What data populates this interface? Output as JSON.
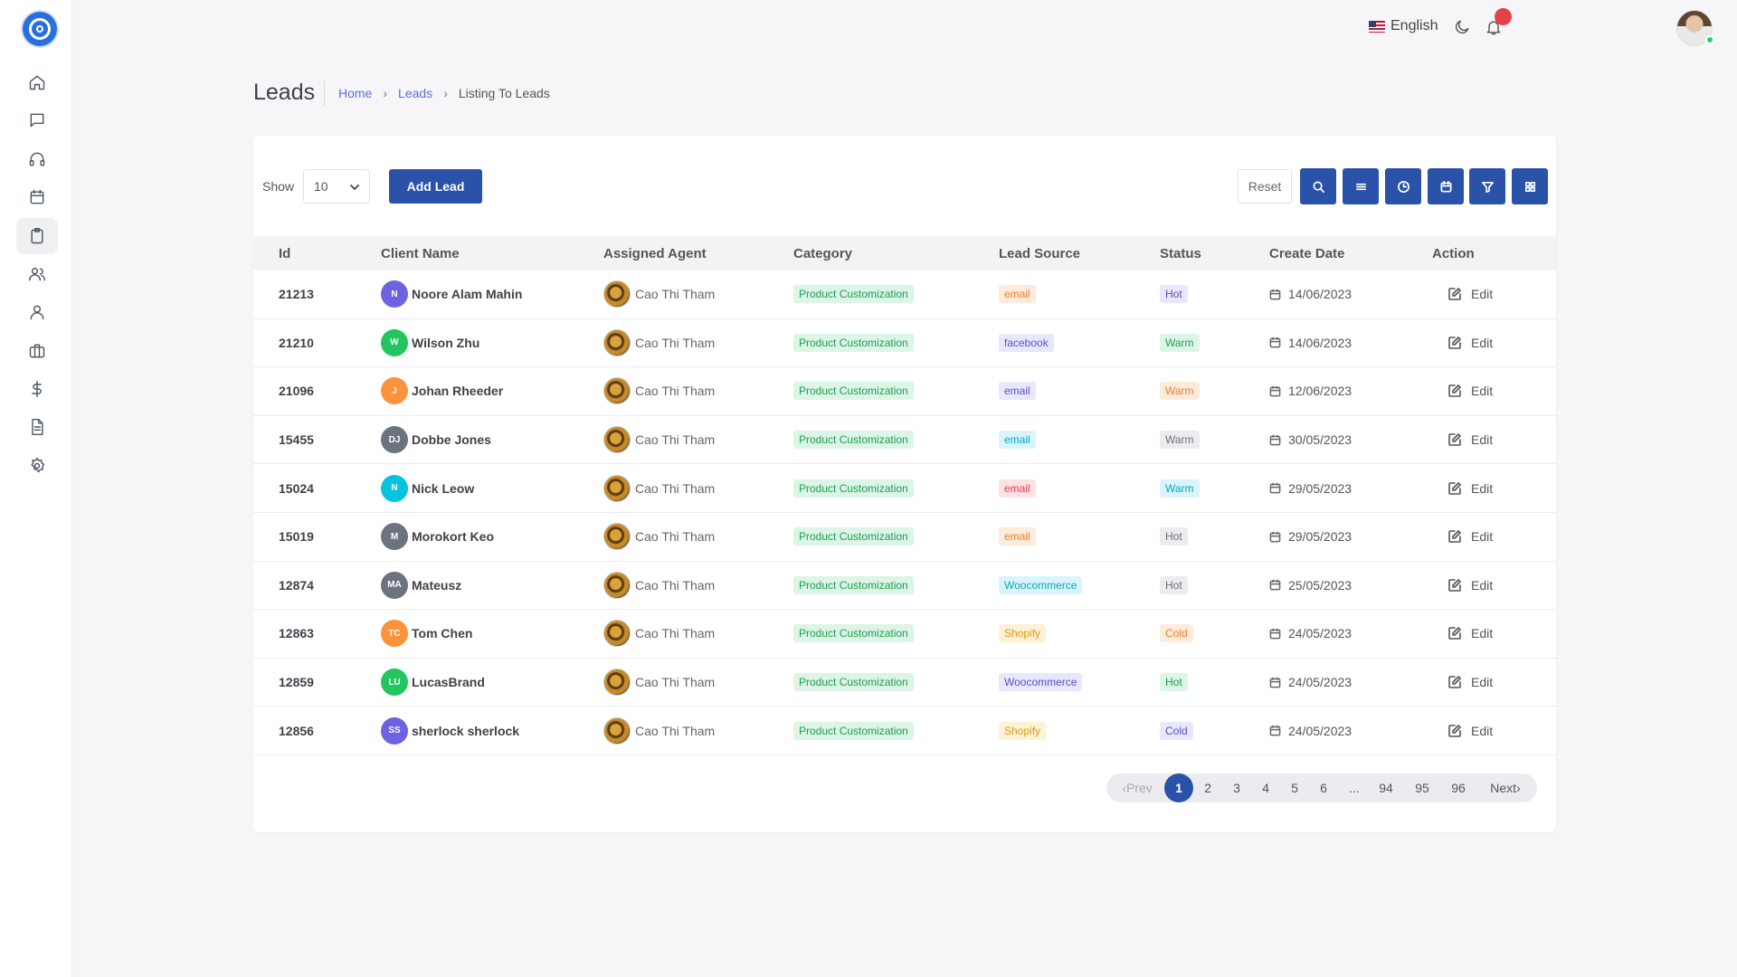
{
  "topbar": {
    "language": "English"
  },
  "header": {
    "title": "Leads",
    "breadcrumb": [
      "Home",
      "Leads",
      "Listing To Leads"
    ]
  },
  "toolbar": {
    "show_label": "Show",
    "page_size": "10",
    "add_label": "Add Lead",
    "reset_label": "Reset"
  },
  "table": {
    "columns": [
      "Id",
      "Client Name",
      "Assigned Agent",
      "Category",
      "Lead Source",
      "Status",
      "Create Date",
      "Action"
    ],
    "rows": [
      {
        "id": "21213",
        "initials": "N",
        "avatar_color": "#6c63e0",
        "name": "Noore Alam Mahin",
        "agent": "Cao Thi Tham",
        "category": "Product Customization",
        "source": "email",
        "source_style": "orange",
        "status": "Hot",
        "status_style": "purple",
        "date": "14/06/2023",
        "action": "Edit"
      },
      {
        "id": "21210",
        "initials": "W",
        "avatar_color": "#22c55e",
        "name": "Wilson Zhu",
        "agent": "Cao Thi Tham",
        "category": "Product Customization",
        "source": "facebook",
        "source_style": "purple",
        "status": "Warm",
        "status_style": "green",
        "date": "14/06/2023",
        "action": "Edit"
      },
      {
        "id": "21096",
        "initials": "J",
        "avatar_color": "#fb923c",
        "name": "Johan Rheeder",
        "agent": "Cao Thi Tham",
        "category": "Product Customization",
        "source": "email",
        "source_style": "purple",
        "status": "Warm",
        "status_style": "orange",
        "date": "12/06/2023",
        "action": "Edit"
      },
      {
        "id": "15455",
        "initials": "DJ",
        "avatar_color": "#6b7280",
        "name": "Dobbe Jones",
        "agent": "Cao Thi Tham",
        "category": "Product Customization",
        "source": "email",
        "source_style": "cyan",
        "status": "Warm",
        "status_style": "gray",
        "date": "30/05/2023",
        "action": "Edit"
      },
      {
        "id": "15024",
        "initials": "N",
        "avatar_color": "#06c3e0",
        "name": "Nick Leow",
        "agent": "Cao Thi Tham",
        "category": "Product Customization",
        "source": "email",
        "source_style": "red",
        "status": "Warm",
        "status_style": "cyan",
        "date": "29/05/2023",
        "action": "Edit"
      },
      {
        "id": "15019",
        "initials": "M",
        "avatar_color": "#6b7280",
        "name": "Morokort Keo",
        "agent": "Cao Thi Tham",
        "category": "Product Customization",
        "source": "email",
        "source_style": "orange",
        "status": "Hot",
        "status_style": "gray",
        "date": "29/05/2023",
        "action": "Edit"
      },
      {
        "id": "12874",
        "initials": "MA",
        "avatar_color": "#6b7280",
        "name": "Mateusz",
        "agent": "Cao Thi Tham",
        "category": "Product Customization",
        "source": "Woocommerce",
        "source_style": "cyan",
        "status": "Hot",
        "status_style": "gray",
        "date": "25/05/2023",
        "action": "Edit"
      },
      {
        "id": "12863",
        "initials": "TC",
        "avatar_color": "#fb923c",
        "name": "Tom Chen",
        "agent": "Cao Thi Tham",
        "category": "Product Customization",
        "source": "Shopify",
        "source_style": "yellow",
        "status": "Cold",
        "status_style": "orange",
        "date": "24/05/2023",
        "action": "Edit"
      },
      {
        "id": "12859",
        "initials": "LU",
        "avatar_color": "#22c55e",
        "name": "LucasBrand",
        "agent": "Cao Thi Tham",
        "category": "Product Customization",
        "source": "Woocommerce",
        "source_style": "purple",
        "status": "Hot",
        "status_style": "green",
        "date": "24/05/2023",
        "action": "Edit"
      },
      {
        "id": "12856",
        "initials": "SS",
        "avatar_color": "#6c63e0",
        "name": "sherlock sherlock",
        "agent": "Cao Thi Tham",
        "category": "Product Customization",
        "source": "Shopify",
        "source_style": "yellow",
        "status": "Cold",
        "status_style": "purple",
        "date": "24/05/2023",
        "action": "Edit"
      }
    ]
  },
  "pagination": {
    "prev": "Prev",
    "pages": [
      "1",
      "2",
      "3",
      "4",
      "5",
      "6",
      "...",
      "94",
      "95",
      "96"
    ],
    "current": "1",
    "next": "Next"
  },
  "badge_styles": {
    "green": {
      "bg": "#dcf5e4",
      "fg": "#1f9d55"
    },
    "orange": {
      "bg": "#fdebdc",
      "fg": "#f07f2a"
    },
    "purple": {
      "bg": "#e8e7fb",
      "fg": "#5a4fd0"
    },
    "cyan": {
      "bg": "#d9f5fb",
      "fg": "#0aa5c6"
    },
    "red": {
      "bg": "#fde1e3",
      "fg": "#e4414d"
    },
    "gray": {
      "bg": "#ececef",
      "fg": "#6b7280"
    },
    "yellow": {
      "bg": "#fdf1d6",
      "fg": "#e09a12"
    }
  },
  "icons": {
    "sidebar": [
      "home-icon",
      "chat-icon",
      "headset-icon",
      "calendar-icon",
      "clipboard-icon",
      "users-icon",
      "user-icon",
      "briefcase-icon",
      "dollar-icon",
      "document-icon",
      "settings-icon"
    ],
    "toolbar": [
      "search-icon",
      "list-icon",
      "clock-icon",
      "calendar-icon",
      "filter-icon",
      "grid-icon"
    ]
  }
}
